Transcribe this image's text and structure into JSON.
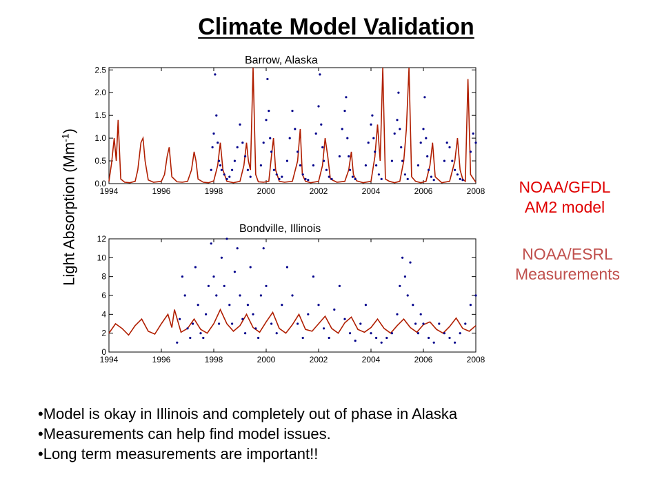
{
  "slide": {
    "title": "Climate Model Validation",
    "y_axis_title": "Light Absorption (Mm",
    "y_axis_exponent": "-1",
    "y_axis_close": ")"
  },
  "legend": {
    "model_line1": "NOAA/GFDL",
    "model_line2": "AM2 model",
    "measurement_line1": "NOAA/ESRL",
    "measurement_line2": "Measurements",
    "model_color": "#b01e00",
    "measurement_color": "#00008b"
  },
  "bullets": [
    "•Model is okay in Illinois and completely out of phase in Alaska",
    "•Measurements can help find model issues.",
    "•Long term measurements are important!!"
  ],
  "chart_data": [
    {
      "type": "line",
      "title": "Barrow, Alaska",
      "xlabel": "",
      "ylabel": "Light Absorption (Mm-1)",
      "xlim": [
        1994,
        2008
      ],
      "ylim": [
        0,
        2.55
      ],
      "x_ticks": [
        1994,
        1996,
        1998,
        2000,
        2002,
        2004,
        2006,
        2008
      ],
      "y_ticks": [
        0.0,
        0.5,
        1.0,
        1.5,
        2.0,
        2.5
      ],
      "y_tick_labels": [
        "0.0",
        "0.5",
        "1.0",
        "1.5",
        "2.0",
        "2.5"
      ],
      "grid": false,
      "series": [
        {
          "name": "NOAA/GFDL AM2 model",
          "style": "line",
          "color": "#b01e00",
          "x": [
            1994.0,
            1994.1,
            1994.2,
            1994.28,
            1994.35,
            1994.45,
            1994.6,
            1994.8,
            1995.0,
            1995.1,
            1995.22,
            1995.3,
            1995.38,
            1995.5,
            1995.7,
            1996.0,
            1996.12,
            1996.22,
            1996.3,
            1996.4,
            1996.6,
            1996.8,
            1997.0,
            1997.15,
            1997.25,
            1997.32,
            1997.4,
            1997.6,
            1997.8,
            1998.0,
            1998.15,
            1998.25,
            1998.35,
            1998.5,
            1998.75,
            1999.0,
            1999.15,
            1999.25,
            1999.32,
            1999.4,
            1999.5,
            1999.6,
            1999.7,
            1999.9,
            2000.1,
            2000.2,
            2000.28,
            2000.36,
            2000.5,
            2000.7,
            2001.0,
            2001.2,
            2001.3,
            2001.38,
            2001.5,
            2001.7,
            2002.0,
            2002.15,
            2002.25,
            2002.35,
            2002.45,
            2002.7,
            2003.0,
            2003.15,
            2003.25,
            2003.33,
            2003.45,
            2003.7,
            2004.0,
            2004.15,
            2004.25,
            2004.35,
            2004.45,
            2004.55,
            2004.7,
            2004.9,
            2005.1,
            2005.25,
            2005.35,
            2005.45,
            2005.55,
            2005.7,
            2005.9,
            2006.1,
            2006.25,
            2006.35,
            2006.45,
            2006.7,
            2007.0,
            2007.2,
            2007.3,
            2007.4,
            2007.5,
            2007.6,
            2007.7,
            2007.8,
            2008.0
          ],
          "y": [
            0.05,
            0.45,
            1.0,
            0.5,
            1.4,
            0.1,
            0.03,
            0.02,
            0.05,
            0.3,
            0.9,
            1.0,
            0.5,
            0.08,
            0.03,
            0.05,
            0.2,
            0.6,
            0.8,
            0.15,
            0.04,
            0.03,
            0.05,
            0.3,
            0.7,
            0.5,
            0.1,
            0.03,
            0.02,
            0.06,
            0.4,
            0.9,
            0.3,
            0.05,
            0.02,
            0.05,
            0.4,
            0.9,
            0.5,
            0.3,
            2.55,
            0.2,
            0.04,
            0.03,
            0.05,
            0.6,
            1.0,
            0.3,
            0.05,
            0.03,
            0.05,
            0.5,
            1.2,
            0.2,
            0.05,
            0.02,
            0.05,
            0.4,
            1.0,
            0.6,
            0.1,
            0.03,
            0.05,
            0.3,
            0.7,
            0.2,
            0.06,
            0.02,
            0.05,
            0.6,
            1.3,
            0.5,
            2.55,
            0.1,
            0.05,
            0.02,
            0.05,
            0.5,
            1.2,
            2.55,
            0.15,
            0.05,
            0.02,
            0.05,
            0.4,
            0.9,
            0.15,
            0.02,
            0.05,
            0.5,
            1.0,
            0.3,
            0.1,
            0.05,
            2.3,
            0.2,
            0.03
          ]
        },
        {
          "name": "NOAA/ESRL Measurements",
          "style": "scatter",
          "color": "#00008b",
          "x": [
            1997.9,
            1997.95,
            1998.0,
            1998.05,
            1998.1,
            1998.15,
            1998.2,
            1998.25,
            1998.3,
            1998.4,
            1998.5,
            1998.6,
            1998.7,
            1998.8,
            1998.9,
            1999.0,
            1999.1,
            1999.2,
            1999.3,
            1999.4,
            1999.8,
            1999.9,
            2000.0,
            2000.05,
            2000.1,
            2000.15,
            2000.2,
            2000.3,
            2000.4,
            2000.5,
            2000.6,
            2000.8,
            2000.9,
            2001.0,
            2001.1,
            2001.2,
            2001.3,
            2001.4,
            2001.5,
            2001.6,
            2001.8,
            2001.9,
            2002.0,
            2002.05,
            2002.1,
            2002.15,
            2002.2,
            2002.3,
            2002.4,
            2002.5,
            2002.8,
            2002.9,
            2003.0,
            2003.05,
            2003.1,
            2003.15,
            2003.2,
            2003.3,
            2003.4,
            2003.8,
            2003.9,
            2004.0,
            2004.05,
            2004.1,
            2004.15,
            2004.2,
            2004.3,
            2004.4,
            2004.8,
            2004.9,
            2005.0,
            2005.05,
            2005.1,
            2005.15,
            2005.2,
            2005.3,
            2005.4,
            2005.8,
            2005.9,
            2006.0,
            2006.05,
            2006.1,
            2006.15,
            2006.2,
            2006.3,
            2006.4,
            2006.8,
            2006.9,
            2007.0,
            2007.1,
            2007.2,
            2007.3,
            2007.4,
            2007.5,
            2007.8,
            2007.9,
            2008.0
          ],
          "y": [
            0.3,
            0.8,
            1.1,
            2.4,
            1.5,
            0.9,
            0.5,
            0.4,
            0.3,
            0.2,
            0.1,
            0.15,
            0.3,
            0.5,
            0.8,
            1.3,
            0.9,
            0.6,
            0.3,
            0.15,
            0.4,
            0.9,
            1.4,
            2.3,
            1.6,
            1.0,
            0.7,
            0.3,
            0.2,
            0.1,
            0.15,
            0.5,
            1.0,
            1.6,
            1.2,
            0.7,
            0.4,
            0.2,
            0.1,
            0.08,
            0.4,
            1.1,
            1.7,
            2.4,
            1.3,
            0.8,
            0.5,
            0.3,
            0.15,
            0.1,
            0.6,
            1.2,
            1.6,
            1.9,
            1.0,
            0.6,
            0.3,
            0.15,
            0.1,
            0.4,
            0.9,
            1.3,
            1.5,
            1.0,
            0.7,
            0.4,
            0.2,
            0.1,
            0.5,
            1.1,
            1.4,
            2.0,
            1.2,
            0.8,
            0.5,
            0.2,
            0.1,
            0.4,
            0.9,
            1.2,
            1.9,
            1.0,
            0.6,
            0.3,
            0.15,
            0.08,
            0.5,
            0.9,
            0.8,
            0.5,
            0.3,
            0.2,
            0.1,
            0.08,
            0.7,
            1.1,
            0.9
          ]
        }
      ]
    },
    {
      "type": "line",
      "title": "Bondville, Illinois",
      "xlabel": "",
      "ylabel": "Light Absorption (Mm-1)",
      "xlim": [
        1994,
        2008
      ],
      "ylim": [
        0,
        12
      ],
      "x_ticks": [
        1994,
        1996,
        1998,
        2000,
        2002,
        2004,
        2006,
        2008
      ],
      "y_ticks": [
        0,
        2,
        4,
        6,
        8,
        10,
        12
      ],
      "y_tick_labels": [
        "0",
        "2",
        "4",
        "6",
        "8",
        "10",
        "12"
      ],
      "grid": false,
      "series": [
        {
          "name": "NOAA/GFDL AM2 model",
          "style": "line",
          "color": "#b01e00",
          "x": [
            1994.0,
            1994.25,
            1994.5,
            1994.75,
            1995.0,
            1995.25,
            1995.5,
            1995.75,
            1996.0,
            1996.25,
            1996.4,
            1996.5,
            1996.75,
            1997.0,
            1997.25,
            1997.5,
            1997.75,
            1998.0,
            1998.25,
            1998.5,
            1998.75,
            1999.0,
            1999.25,
            1999.5,
            1999.75,
            2000.0,
            2000.25,
            2000.5,
            2000.75,
            2001.0,
            2001.25,
            2001.5,
            2001.75,
            2002.0,
            2002.25,
            2002.5,
            2002.75,
            2003.0,
            2003.25,
            2003.5,
            2003.75,
            2004.0,
            2004.25,
            2004.5,
            2004.75,
            2005.0,
            2005.25,
            2005.5,
            2005.75,
            2006.0,
            2006.25,
            2006.5,
            2006.75,
            2007.0,
            2007.25,
            2007.5,
            2007.75,
            2008.0
          ],
          "y": [
            2.0,
            3.0,
            2.5,
            1.8,
            2.8,
            3.5,
            2.2,
            1.9,
            3.0,
            4.0,
            2.6,
            4.5,
            2.1,
            2.5,
            3.5,
            2.4,
            2.0,
            3.0,
            4.5,
            3.0,
            2.2,
            2.8,
            4.0,
            2.6,
            2.1,
            3.2,
            4.2,
            2.5,
            2.0,
            2.9,
            4.0,
            2.4,
            2.2,
            3.0,
            3.8,
            2.5,
            2.0,
            3.1,
            3.7,
            2.4,
            2.1,
            2.6,
            3.5,
            2.5,
            2.0,
            2.8,
            3.5,
            2.6,
            2.1,
            2.9,
            3.2,
            2.4,
            2.0,
            2.7,
            3.6,
            2.5,
            2.2,
            2.8
          ]
        },
        {
          "name": "NOAA/ESRL Measurements",
          "style": "scatter",
          "color": "#00008b",
          "x": [
            1996.6,
            1996.7,
            1996.8,
            1996.9,
            1997.0,
            1997.1,
            1997.2,
            1997.3,
            1997.4,
            1997.5,
            1997.6,
            1997.7,
            1997.8,
            1997.9,
            1998.0,
            1998.1,
            1998.2,
            1998.3,
            1998.4,
            1998.5,
            1998.6,
            1998.7,
            1998.8,
            1998.9,
            1999.0,
            1999.1,
            1999.2,
            1999.3,
            1999.4,
            1999.5,
            1999.6,
            1999.7,
            1999.8,
            1999.9,
            2000.0,
            2000.2,
            2000.4,
            2000.6,
            2000.8,
            2001.0,
            2001.2,
            2001.4,
            2001.6,
            2001.8,
            2002.0,
            2002.2,
            2002.4,
            2002.6,
            2002.8,
            2003.0,
            2003.2,
            2003.4,
            2003.6,
            2003.8,
            2004.0,
            2004.2,
            2004.4,
            2004.6,
            2004.8,
            2005.0,
            2005.1,
            2005.2,
            2005.3,
            2005.4,
            2005.5,
            2005.6,
            2005.7,
            2005.8,
            2005.9,
            2006.0,
            2006.2,
            2006.4,
            2006.6,
            2006.8,
            2007.0,
            2007.2,
            2007.4,
            2007.6,
            2007.8,
            2008.0
          ],
          "y": [
            1.0,
            3.5,
            8.0,
            6.0,
            2.5,
            1.5,
            3.0,
            9.0,
            5.0,
            2.0,
            1.5,
            4.0,
            7.0,
            11.5,
            8.0,
            6.0,
            3.0,
            10.0,
            7.0,
            12.0,
            5.0,
            3.0,
            8.5,
            11.0,
            6.0,
            3.5,
            2.0,
            5.0,
            9.0,
            4.0,
            2.5,
            1.5,
            6.0,
            11.0,
            7.0,
            3.0,
            2.0,
            5.0,
            9.0,
            6.0,
            3.0,
            1.5,
            4.0,
            8.0,
            5.0,
            2.5,
            1.5,
            4.5,
            7.0,
            3.5,
            2.0,
            1.2,
            3.0,
            5.0,
            2.0,
            1.5,
            1.0,
            1.5,
            2.0,
            4.0,
            7.0,
            10.0,
            8.0,
            6.0,
            9.5,
            5.0,
            3.0,
            2.0,
            4.0,
            3.0,
            1.5,
            1.0,
            3.0,
            2.0,
            1.5,
            1.0,
            2.0,
            3.0,
            5.0,
            6.0
          ]
        }
      ]
    }
  ]
}
